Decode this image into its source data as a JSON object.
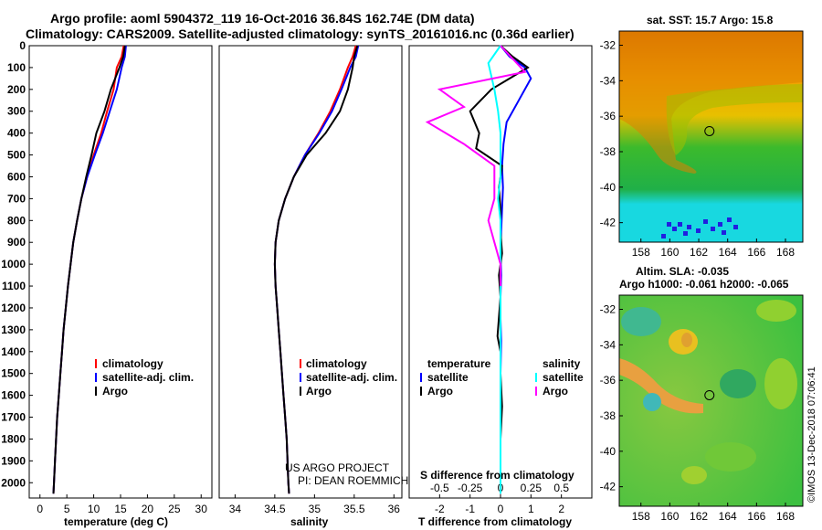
{
  "title_line1": "Argo profile: aoml 5904372_119 16-Oct-2016 36.84S 162.74E (DM data)",
  "title_line2": "Climatology: CARS2009. Satellite-adjusted climatology: synTS_20161016.nc (0.36d earlier)",
  "colors": {
    "climatology": "#ff0000",
    "satellite": "#0000ff",
    "argo": "#000000",
    "sat_salinity": "#00ffff",
    "argo_salinity": "#ff00ff"
  },
  "chart_data": [
    {
      "type": "line",
      "name": "temperature",
      "xlabel": "temperature (deg C)",
      "ylabel": "",
      "xlim": [
        -2,
        32
      ],
      "ylim": [
        2070,
        0
      ],
      "xticks": [
        0,
        5,
        10,
        15,
        20,
        25,
        30
      ],
      "yticks": [
        0,
        100,
        200,
        300,
        400,
        500,
        600,
        700,
        800,
        900,
        1000,
        1100,
        1200,
        1300,
        1400,
        1500,
        1600,
        1700,
        1800,
        1900,
        2000
      ],
      "legend": {
        "position": "bottom-center",
        "entries": [
          "climatology",
          "satellite-adj. clim.",
          "Argo"
        ]
      },
      "series": [
        {
          "name": "climatology",
          "color": "climatology",
          "x": [
            15.6,
            15.2,
            14.3,
            13.7,
            12.5,
            11.4,
            10.0,
            8.8,
            7.7,
            6.9,
            6.2,
            5.7,
            5.2,
            4.8,
            4.4,
            4.1,
            3.8,
            3.5,
            3.2,
            3.0,
            2.8,
            2.6,
            2.5
          ],
          "y": [
            0,
            50,
            100,
            200,
            300,
            400,
            500,
            600,
            700,
            800,
            900,
            1000,
            1100,
            1200,
            1300,
            1400,
            1500,
            1600,
            1700,
            1800,
            1900,
            2000,
            2050
          ]
        },
        {
          "name": "satellite-adj. clim.",
          "color": "satellite",
          "x": [
            16.0,
            15.8,
            15.2,
            14.3,
            13.0,
            11.7,
            10.2,
            8.8,
            7.7,
            6.9,
            6.2,
            5.7,
            5.2,
            4.8,
            4.4,
            4.1,
            3.8,
            3.5,
            3.2,
            3.0,
            2.8,
            2.6,
            2.5
          ],
          "y": [
            0,
            50,
            100,
            200,
            300,
            400,
            500,
            600,
            700,
            800,
            900,
            1000,
            1100,
            1200,
            1300,
            1400,
            1500,
            1600,
            1700,
            1800,
            1900,
            2000,
            2050
          ]
        },
        {
          "name": "Argo",
          "color": "argo",
          "x": [
            15.8,
            15.5,
            14.8,
            13.2,
            12.0,
            10.5,
            9.6,
            8.6,
            7.7,
            6.9,
            6.2,
            5.7,
            5.2,
            4.8,
            4.4,
            4.1,
            3.8,
            3.5,
            3.2,
            3.0,
            2.8,
            2.6,
            2.5
          ],
          "y": [
            0,
            50,
            100,
            200,
            300,
            400,
            500,
            600,
            700,
            800,
            900,
            1000,
            1100,
            1200,
            1300,
            1400,
            1500,
            1600,
            1700,
            1800,
            1900,
            2000,
            2050
          ]
        }
      ]
    },
    {
      "type": "line",
      "name": "salinity",
      "xlabel": "salinity",
      "ylabel": "",
      "xlim": [
        33.8,
        36.1
      ],
      "ylim": [
        2070,
        0
      ],
      "xticks": [
        34,
        34.5,
        35,
        35.5,
        36
      ],
      "xtick_labels": [
        "34",
        "34.5",
        "35",
        "35.5",
        "36"
      ],
      "legend": {
        "position": "bottom-center",
        "entries": [
          "climatology",
          "satellite-adj. clim.",
          "Argo"
        ]
      },
      "annotation": [
        "US ARGO PROJECT",
        "PI: DEAN ROEMMICH"
      ],
      "series": [
        {
          "name": "climatology",
          "color": "climatology",
          "x": [
            35.52,
            35.48,
            35.42,
            35.32,
            35.2,
            35.05,
            34.88,
            34.74,
            34.63,
            34.55,
            34.51,
            34.5,
            34.51,
            34.53,
            34.55,
            34.57,
            34.59,
            34.61,
            34.63,
            34.65,
            34.66,
            34.67,
            34.68
          ],
          "y": [
            0,
            50,
            100,
            200,
            300,
            400,
            500,
            600,
            700,
            800,
            900,
            1000,
            1100,
            1200,
            1300,
            1400,
            1500,
            1600,
            1700,
            1800,
            1900,
            2000,
            2050
          ]
        },
        {
          "name": "satellite-adj. clim.",
          "color": "satellite",
          "x": [
            35.55,
            35.52,
            35.45,
            35.34,
            35.22,
            35.06,
            34.88,
            34.74,
            34.63,
            34.55,
            34.51,
            34.5,
            34.51,
            34.53,
            34.55,
            34.57,
            34.59,
            34.61,
            34.63,
            34.65,
            34.66,
            34.67,
            34.68
          ],
          "y": [
            0,
            50,
            100,
            200,
            300,
            400,
            500,
            600,
            700,
            800,
            900,
            1000,
            1100,
            1200,
            1300,
            1400,
            1500,
            1600,
            1700,
            1800,
            1900,
            2000,
            2050
          ]
        },
        {
          "name": "Argo",
          "color": "argo",
          "x": [
            35.54,
            35.5,
            35.48,
            35.42,
            35.32,
            35.14,
            34.9,
            34.74,
            34.63,
            34.55,
            34.51,
            34.5,
            34.51,
            34.53,
            34.55,
            34.57,
            34.59,
            34.61,
            34.63,
            34.65,
            34.66,
            34.67,
            34.68
          ],
          "y": [
            0,
            50,
            100,
            200,
            300,
            400,
            500,
            600,
            700,
            800,
            900,
            1000,
            1100,
            1200,
            1300,
            1400,
            1500,
            1600,
            1700,
            1800,
            1900,
            2000,
            2050
          ]
        }
      ]
    },
    {
      "type": "line",
      "name": "difference",
      "xlabel": "T difference from climatology",
      "top_xlabel": "S difference from climatology",
      "xlim": [
        -3,
        3
      ],
      "ylim": [
        2070,
        0
      ],
      "xticks": [
        -2,
        -1,
        0,
        1,
        2
      ],
      "top_xticks": [
        -0.5,
        -0.25,
        0,
        0.25,
        0.5
      ],
      "top_xtick_labels": [
        "-0.5",
        "-0.25",
        "0",
        "0.25",
        "0.5"
      ],
      "top_xlim": [
        -0.75,
        0.75
      ],
      "legend": {
        "position": "bottom",
        "temperature_header": "temperature",
        "salinity_header": "salinity",
        "temperature_entries": [
          "satellite",
          "Argo"
        ],
        "salinity_entries": [
          "satellite",
          "Argo"
        ]
      },
      "series": [
        {
          "name": "satellite T",
          "color": "satellite",
          "x": [
            0,
            0.3,
            0.8,
            1.0,
            0.6,
            0.2,
            0.1,
            0.05,
            0.08,
            0.05,
            0.02,
            0.0,
            0.02,
            0.0,
            0.0,
            0.02,
            0.0,
            0.0,
            0.0,
            0.0,
            0.0
          ],
          "y": [
            0,
            50,
            100,
            150,
            250,
            350,
            450,
            550,
            650,
            750,
            850,
            950,
            1050,
            1150,
            1250,
            1350,
            1500,
            1650,
            1800,
            1950,
            2050
          ]
        },
        {
          "name": "Argo T",
          "color": "argo",
          "x": [
            0,
            0.4,
            0.9,
            -0.3,
            -1.0,
            -0.7,
            -0.8,
            0.05,
            -0.05,
            0.0,
            0.0,
            0.05,
            -0.05,
            0.0,
            -0.1,
            0.0,
            0.0,
            0.05,
            0.0,
            0.0,
            0.0
          ],
          "y": [
            0,
            50,
            100,
            200,
            300,
            400,
            470,
            550,
            650,
            750,
            850,
            950,
            1050,
            1150,
            1330,
            1400,
            1500,
            1650,
            1800,
            1950,
            2050
          ]
        },
        {
          "name": "satellite S",
          "color": "sat_salinity",
          "x": [
            0,
            -0.1,
            -0.05,
            -0.02,
            0.0,
            0.0,
            0.0,
            -0.02,
            0.0,
            0.0,
            0.0,
            0.0,
            0.0,
            0.0,
            0.0,
            0.0,
            0.0,
            0.0,
            0.0,
            0.0
          ],
          "y": [
            0,
            80,
            200,
            300,
            400,
            500,
            600,
            700,
            800,
            900,
            1000,
            1100,
            1200,
            1300,
            1400,
            1500,
            1600,
            1700,
            1850,
            2050
          ]
        },
        {
          "name": "Argo S",
          "color": "argo_salinity",
          "x": [
            0,
            0.2,
            -0.5,
            -0.3,
            -0.6,
            -0.3,
            -0.05,
            -0.05,
            -0.1,
            -0.05,
            0.0,
            0.0
          ],
          "y": [
            0,
            120,
            200,
            280,
            350,
            450,
            550,
            700,
            800,
            900,
            1000,
            1100
          ]
        }
      ]
    },
    {
      "type": "heatmap",
      "name": "sst_map",
      "title": "sat. SST: 15.7 Argo: 15.8",
      "xticks": [
        158,
        160,
        162,
        164,
        166,
        168
      ],
      "yticks": [
        -32,
        -34,
        -36,
        -38,
        -40,
        -42
      ],
      "xlim": [
        156.5,
        169.2
      ],
      "ylim": [
        -43.1,
        -31.2
      ],
      "marker": {
        "lon": 162.74,
        "lat": -36.84
      }
    },
    {
      "type": "heatmap",
      "name": "sla_map",
      "title": "Altim. SLA: -0.035",
      "subtitle": "Argo h1000: -0.061 h2000: -0.065",
      "xticks": [
        158,
        160,
        162,
        164,
        166,
        168
      ],
      "yticks": [
        -32,
        -34,
        -36,
        -38,
        -40,
        -42
      ],
      "xlim": [
        156.5,
        169.2
      ],
      "ylim": [
        -43.1,
        -31.2
      ],
      "marker": {
        "lon": 162.74,
        "lat": -36.84
      }
    }
  ],
  "credit": "©IMOS 13-Dec-2018 07:06:41"
}
